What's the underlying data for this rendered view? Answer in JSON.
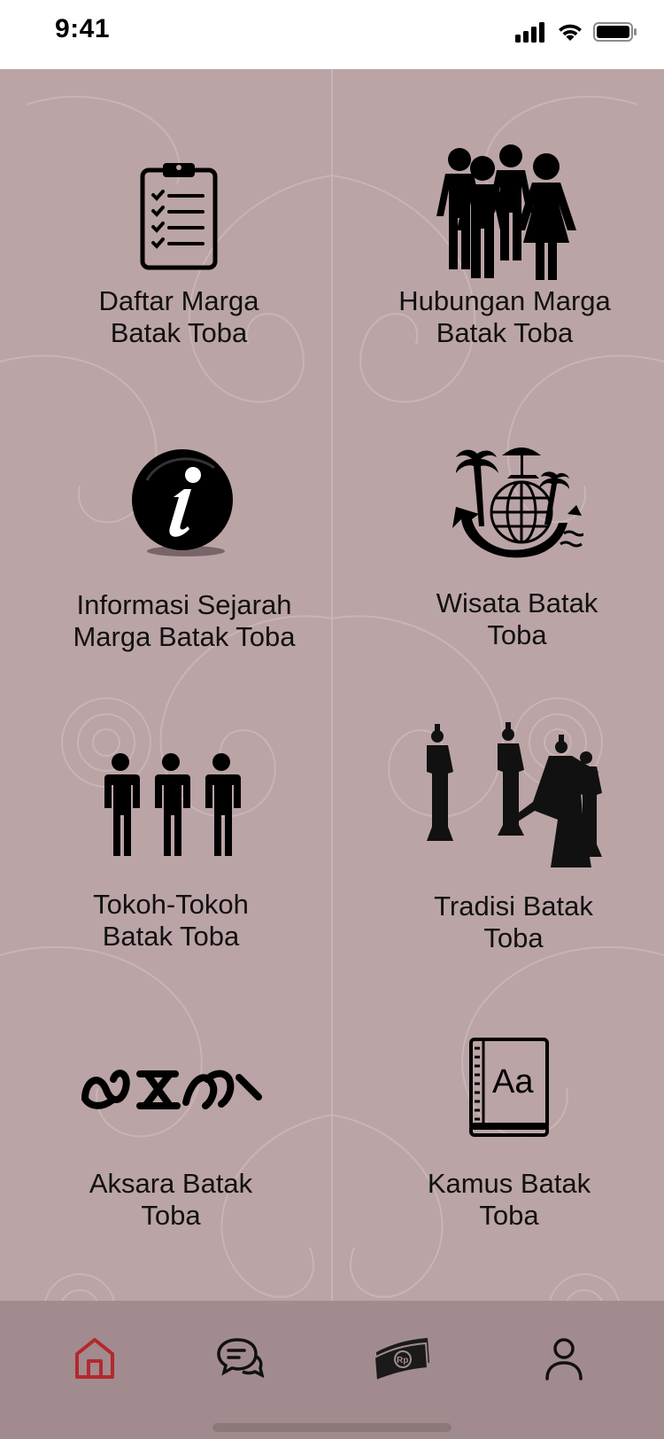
{
  "status_bar": {
    "time": "9:41",
    "icons": [
      "signal-icon",
      "wifi-icon",
      "battery-icon"
    ]
  },
  "colors": {
    "background": "#bba4a6",
    "nav_background": "#a28b8e",
    "active_nav": "#b3292c"
  },
  "menu": {
    "daftar_marga": {
      "line1": "Daftar Marga",
      "line2": "Batak Toba",
      "icon": "clipboard-checklist-icon"
    },
    "hubungan_marga": {
      "line1": "Hubungan Marga",
      "line2": "Batak Toba",
      "icon": "people-group-icon"
    },
    "informasi_sejarah": {
      "line1": "Informasi Sejarah",
      "line2": "Marga Batak Toba",
      "icon": "info-icon"
    },
    "wisata": {
      "line1": "Wisata Batak",
      "line2": "Toba",
      "icon": "globe-travel-icon"
    },
    "tokoh": {
      "line1": "Tokoh-Tokoh",
      "line2": "Batak Toba",
      "icon": "three-persons-icon"
    },
    "tradisi": {
      "line1": "Tradisi Batak",
      "line2": "Toba",
      "icon": "traditional-dancers-icon"
    },
    "aksara": {
      "line1": "Aksara Batak",
      "line2": "Toba",
      "icon": "batak-script-icon"
    },
    "kamus": {
      "line1": "Kamus Batak",
      "line2": "Toba",
      "icon": "dictionary-book-icon",
      "book_text": "Aa"
    }
  },
  "bottom_nav": {
    "items": [
      {
        "name": "home",
        "icon": "home-icon",
        "active": true
      },
      {
        "name": "chat",
        "icon": "chat-bubbles-icon",
        "active": false
      },
      {
        "name": "payment",
        "icon": "money-rupiah-icon",
        "badge_text": "Rp",
        "active": false
      },
      {
        "name": "profile",
        "icon": "user-icon",
        "active": false
      }
    ]
  }
}
